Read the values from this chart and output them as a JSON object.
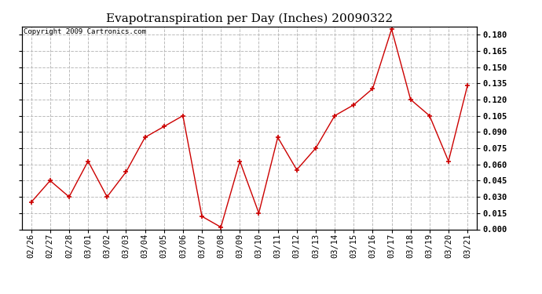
{
  "title": "Evapotranspiration per Day (Inches) 20090322",
  "copyright_text": "Copyright 2009 Cartronics.com",
  "x_labels": [
    "02/26",
    "02/27",
    "02/28",
    "03/01",
    "03/02",
    "03/03",
    "03/04",
    "03/05",
    "03/06",
    "03/07",
    "03/08",
    "03/09",
    "03/10",
    "03/11",
    "03/12",
    "03/13",
    "03/14",
    "03/15",
    "03/16",
    "03/17",
    "03/18",
    "03/19",
    "03/20",
    "03/21"
  ],
  "y_values": [
    0.025,
    0.045,
    0.03,
    0.063,
    0.03,
    0.053,
    0.085,
    0.095,
    0.105,
    0.012,
    0.002,
    0.063,
    0.015,
    0.085,
    0.055,
    0.075,
    0.105,
    0.115,
    0.13,
    0.185,
    0.12,
    0.105,
    0.063,
    0.133
  ],
  "line_color": "#cc0000",
  "marker": "+",
  "marker_size": 5,
  "marker_color": "#cc0000",
  "bg_color": "#ffffff",
  "plot_bg_color": "#ffffff",
  "grid_color": "#bbbbbb",
  "grid_style": "--",
  "ylim": [
    0.0,
    0.1875
  ],
  "yticks": [
    0.0,
    0.015,
    0.03,
    0.045,
    0.06,
    0.075,
    0.09,
    0.105,
    0.12,
    0.135,
    0.15,
    0.165,
    0.18
  ],
  "title_fontsize": 11,
  "tick_fontsize": 7.5,
  "copyright_fontsize": 6.5
}
